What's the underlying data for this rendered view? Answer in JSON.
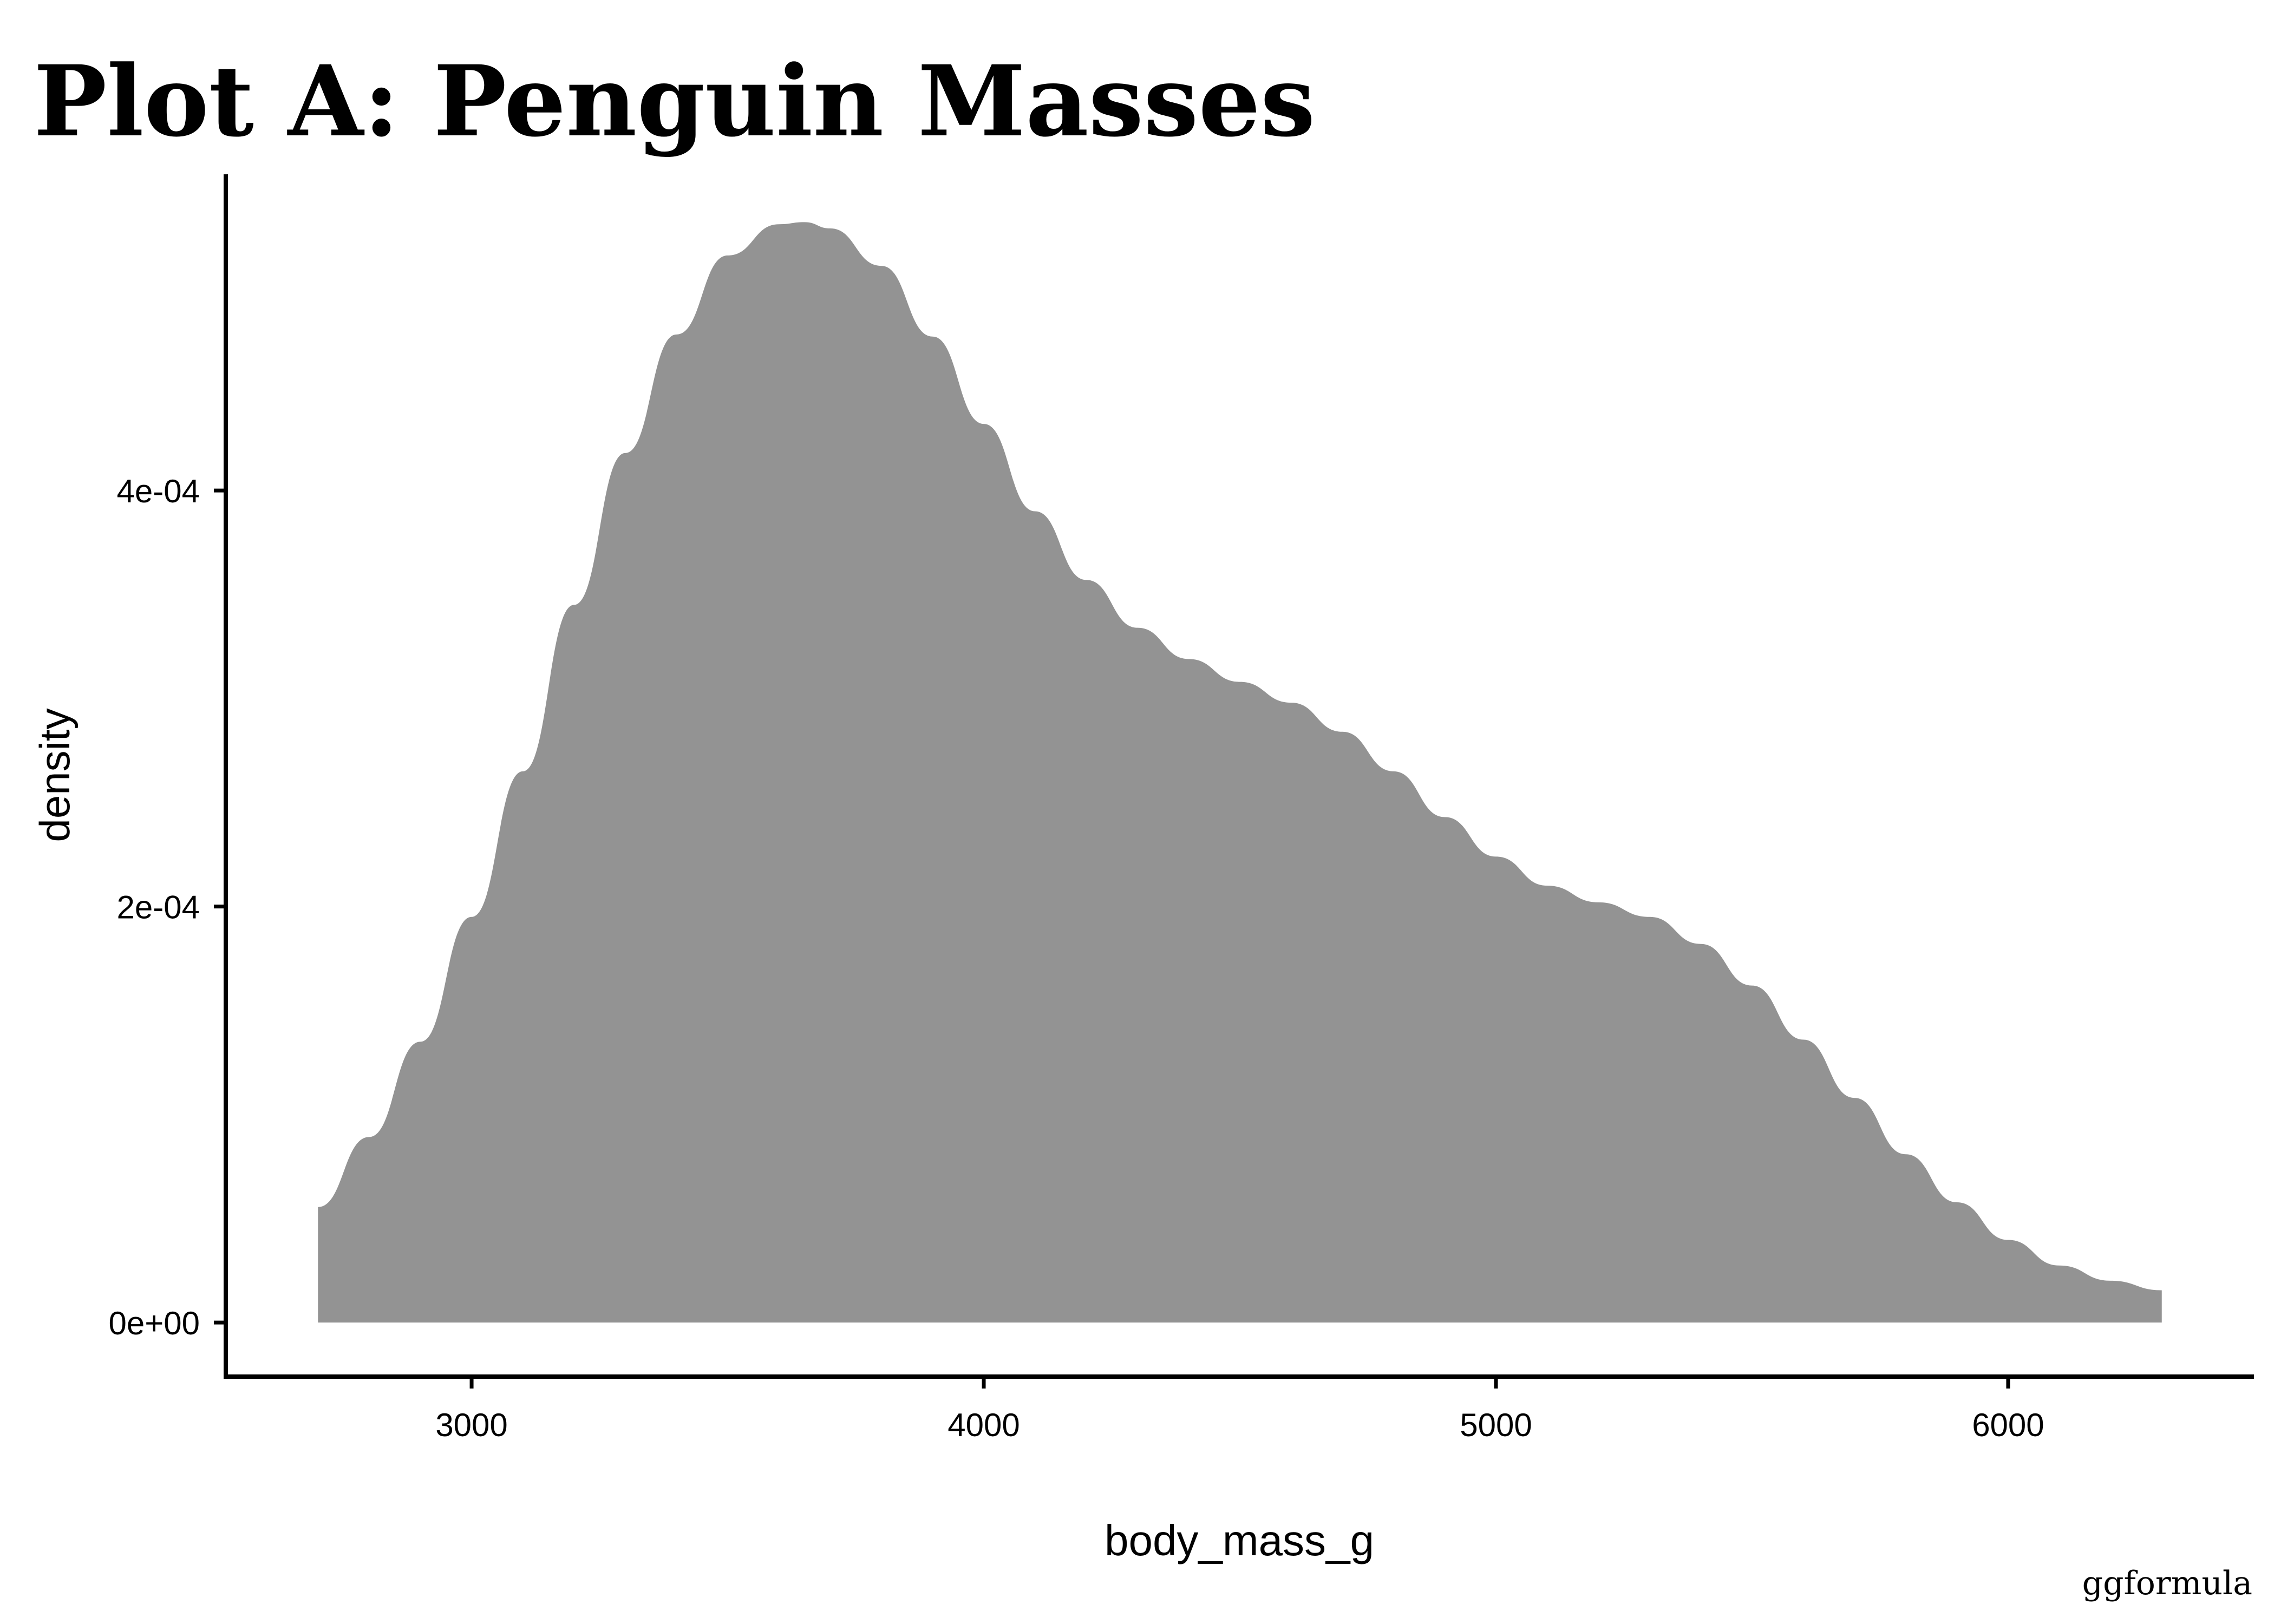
{
  "chart_data": {
    "type": "area",
    "title": "Plot A: Penguin Masses",
    "xlabel": "body_mass_g",
    "ylabel": "density",
    "caption": "ggformula",
    "xlim": [
      2520,
      6480
    ],
    "ylim": [
      -2.6e-05,
      0.000552
    ],
    "x_ticks": [
      {
        "value": 3000,
        "label": "3000"
      },
      {
        "value": 4000,
        "label": "4000"
      },
      {
        "value": 5000,
        "label": "5000"
      },
      {
        "value": 6000,
        "label": "6000"
      }
    ],
    "y_ticks": [
      {
        "value": 0,
        "label": "0e+00"
      },
      {
        "value": 0.0002,
        "label": "2e-04"
      },
      {
        "value": 0.0004,
        "label": "4e-04"
      }
    ],
    "grid": false,
    "fill_color": "#939393",
    "x": [
      2700,
      2800,
      2900,
      3000,
      3100,
      3200,
      3300,
      3400,
      3500,
      3600,
      3650,
      3700,
      3800,
      3900,
      4000,
      4100,
      4200,
      4300,
      4400,
      4500,
      4600,
      4700,
      4800,
      4900,
      5000,
      5100,
      5200,
      5300,
      5400,
      5500,
      5600,
      5700,
      5800,
      5900,
      6000,
      6100,
      6200,
      6300
    ],
    "y": [
      5.55e-05,
      8.92e-05,
      0.000135,
      0.000195,
      0.000265,
      0.000345,
      0.000418,
      0.000475,
      0.000513,
      0.000528,
      0.000529,
      0.000526,
      0.000508,
      0.000474,
      0.000432,
      0.00039,
      0.000357,
      0.000334,
      0.000319,
      0.000308,
      0.000298,
      0.000284,
      0.000265,
      0.000243,
      0.000224,
      0.00021,
      0.000202,
      0.000195,
      0.000182,
      0.000162,
      0.000136,
      0.000108,
      8.09e-05,
      5.78e-05,
      3.97e-05,
      2.74e-05,
      2.01e-05,
      1.55e-05
    ]
  }
}
